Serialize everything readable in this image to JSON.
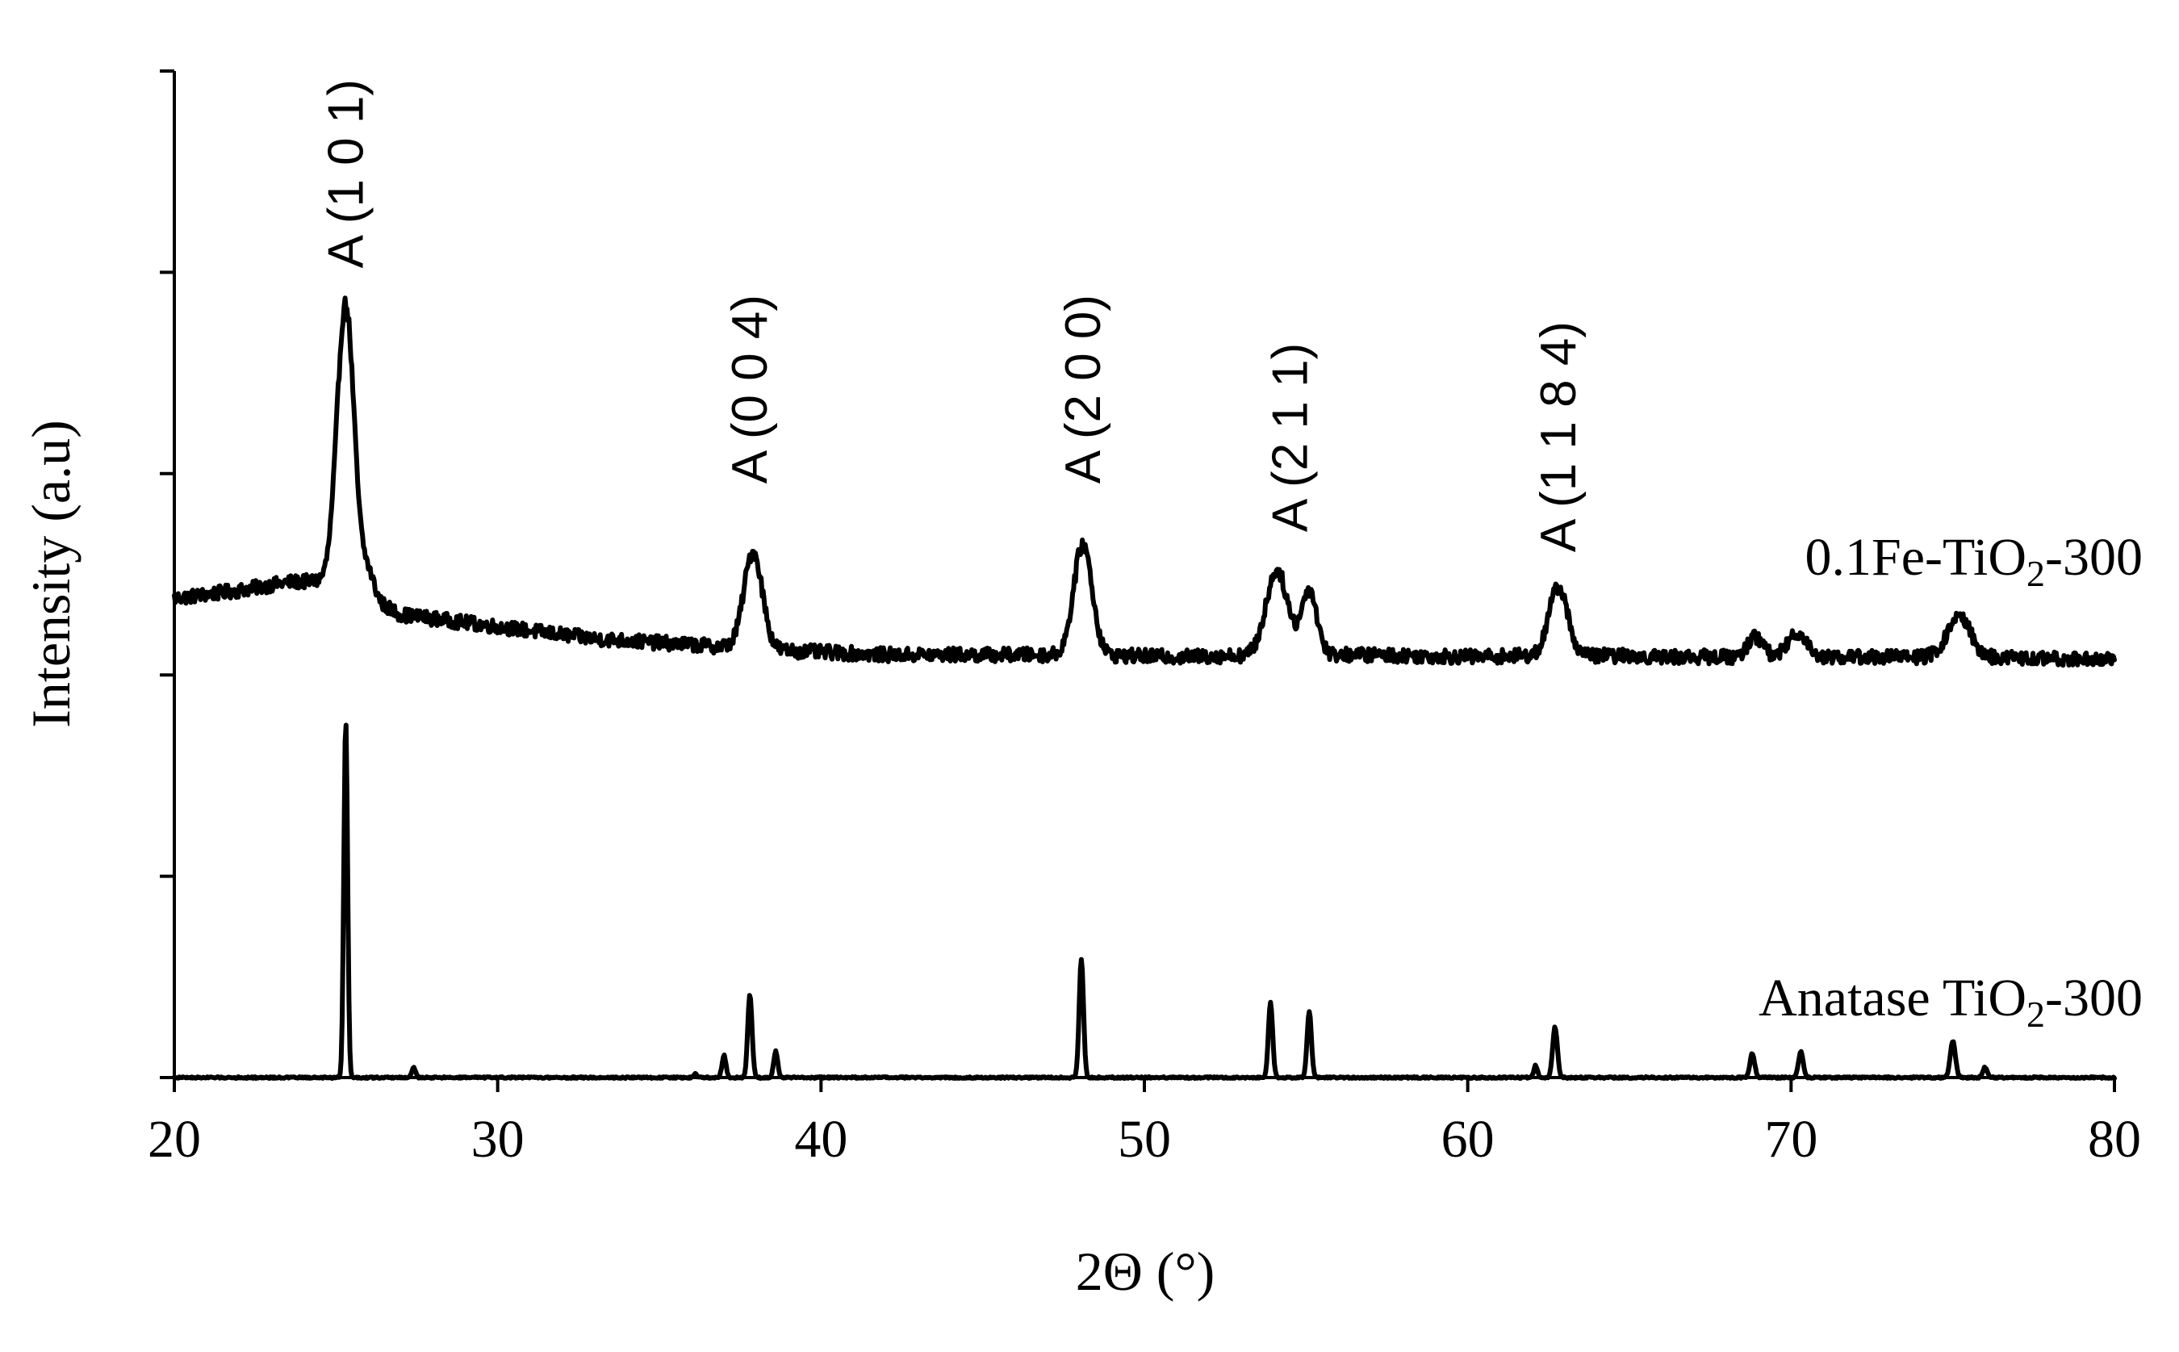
{
  "chart_data": {
    "type": "line",
    "xlabel": "2Θ (°)",
    "ylabel": "Intensity (a.u)",
    "xlim": [
      20,
      80
    ],
    "ylim": [
      0,
      5
    ],
    "x_ticks": [
      20,
      30,
      40,
      50,
      60,
      70,
      80
    ],
    "y_ticks": [
      0,
      1,
      2,
      3,
      4,
      5
    ],
    "y_tick_labels_shown": false,
    "grid": false,
    "series": [
      {
        "name": "0.1Fe-TiO2-300",
        "label_main": "0.1Fe-TiO",
        "label_sub": "2",
        "label_tail": "-300",
        "baseline": [
          [
            20,
            2.38
          ],
          [
            22,
            2.42
          ],
          [
            23.5,
            2.46
          ],
          [
            25,
            2.47
          ],
          [
            27,
            2.3
          ],
          [
            30,
            2.24
          ],
          [
            33,
            2.18
          ],
          [
            36,
            2.15
          ],
          [
            39,
            2.12
          ],
          [
            42,
            2.1
          ],
          [
            45,
            2.1
          ],
          [
            48,
            2.1
          ],
          [
            51,
            2.09
          ],
          [
            54,
            2.1
          ],
          [
            57,
            2.1
          ],
          [
            60,
            2.09
          ],
          [
            63,
            2.1
          ],
          [
            66,
            2.09
          ],
          [
            69,
            2.09
          ],
          [
            72,
            2.09
          ],
          [
            75,
            2.09
          ],
          [
            78,
            2.08
          ],
          [
            80,
            2.08
          ]
        ],
        "peaks": [
          {
            "x": 25.3,
            "height": 1.4,
            "width": 0.55
          },
          {
            "x": 26.0,
            "height": 0.12,
            "width": 0.4
          },
          {
            "x": 37.9,
            "height": 0.48,
            "width": 0.6
          },
          {
            "x": 48.1,
            "height": 0.55,
            "width": 0.6
          },
          {
            "x": 54.1,
            "height": 0.42,
            "width": 0.7
          },
          {
            "x": 55.1,
            "height": 0.32,
            "width": 0.5
          },
          {
            "x": 62.8,
            "height": 0.34,
            "width": 0.6
          },
          {
            "x": 68.9,
            "height": 0.1,
            "width": 0.5
          },
          {
            "x": 70.2,
            "height": 0.12,
            "width": 0.6
          },
          {
            "x": 75.2,
            "height": 0.2,
            "width": 0.75
          }
        ]
      },
      {
        "name": "Anatase TiO2-300",
        "label_main": "Anatase TiO",
        "label_sub": "2",
        "label_tail": "-300",
        "baseline": [
          [
            20,
            0.0
          ],
          [
            80,
            0.0
          ]
        ],
        "peaks": [
          {
            "x": 25.3,
            "height": 1.78,
            "width": 0.12
          },
          {
            "x": 27.4,
            "height": 0.05,
            "width": 0.12
          },
          {
            "x": 36.1,
            "height": 0.02,
            "width": 0.1
          },
          {
            "x": 37.0,
            "height": 0.11,
            "width": 0.13
          },
          {
            "x": 37.8,
            "height": 0.41,
            "width": 0.14
          },
          {
            "x": 38.6,
            "height": 0.13,
            "width": 0.13
          },
          {
            "x": 48.05,
            "height": 0.59,
            "width": 0.14
          },
          {
            "x": 53.9,
            "height": 0.37,
            "width": 0.14
          },
          {
            "x": 55.1,
            "height": 0.33,
            "width": 0.14
          },
          {
            "x": 62.1,
            "height": 0.06,
            "width": 0.12
          },
          {
            "x": 62.7,
            "height": 0.25,
            "width": 0.15
          },
          {
            "x": 68.8,
            "height": 0.12,
            "width": 0.15
          },
          {
            "x": 70.3,
            "height": 0.13,
            "width": 0.15
          },
          {
            "x": 75.0,
            "height": 0.18,
            "width": 0.17
          },
          {
            "x": 76.0,
            "height": 0.05,
            "width": 0.15
          }
        ]
      }
    ],
    "annotations": [
      {
        "text": "A (1 0 1)",
        "x": 25.3,
        "y": 4.02
      },
      {
        "text": "A (0 0 4)",
        "x": 37.8,
        "y": 2.95
      },
      {
        "text": "A (2 0 0)",
        "x": 48.1,
        "y": 2.95
      },
      {
        "text": "A (2 1 1)",
        "x": 54.5,
        "y": 2.71
      },
      {
        "text": "A (1 1 8 4)",
        "x": 62.8,
        "y": 2.61
      }
    ]
  }
}
